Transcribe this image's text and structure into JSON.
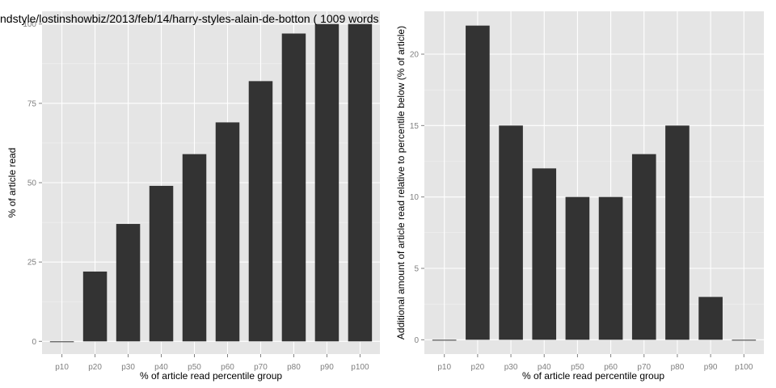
{
  "chart_data": [
    {
      "type": "bar",
      "title": "ndstyle/lostinshowbiz/2013/feb/14/harry-styles-alain-de-botton ( 1009 words",
      "xlabel": "% of article read percentile group",
      "ylabel": "% of article read",
      "categories": [
        "p10",
        "p20",
        "p30",
        "p40",
        "p50",
        "p60",
        "p70",
        "p80",
        "p90",
        "p100"
      ],
      "values": [
        0,
        22,
        37,
        49,
        59,
        69,
        82,
        97,
        100,
        100
      ],
      "ylim": [
        -4,
        104
      ],
      "yticks": [
        0,
        25,
        50,
        75,
        100
      ],
      "grid": true,
      "colors": {
        "bar": "#333333",
        "panel": "#e5e5e5",
        "grid": "#ffffff"
      }
    },
    {
      "type": "bar",
      "title": "",
      "xlabel": "% of article read percentile group",
      "ylabel": "Additional amount of article read relative to percentile below (% of article)",
      "categories": [
        "p10",
        "p20",
        "p30",
        "p40",
        "p50",
        "p60",
        "p70",
        "p80",
        "p90",
        "p100"
      ],
      "values": [
        0,
        22,
        15,
        12,
        10,
        10,
        13,
        15,
        3,
        0
      ],
      "ylim": [
        -1,
        23
      ],
      "yticks": [
        0,
        5,
        10,
        15,
        20
      ],
      "grid": true,
      "colors": {
        "bar": "#333333",
        "panel": "#e5e5e5",
        "grid": "#ffffff"
      }
    }
  ]
}
